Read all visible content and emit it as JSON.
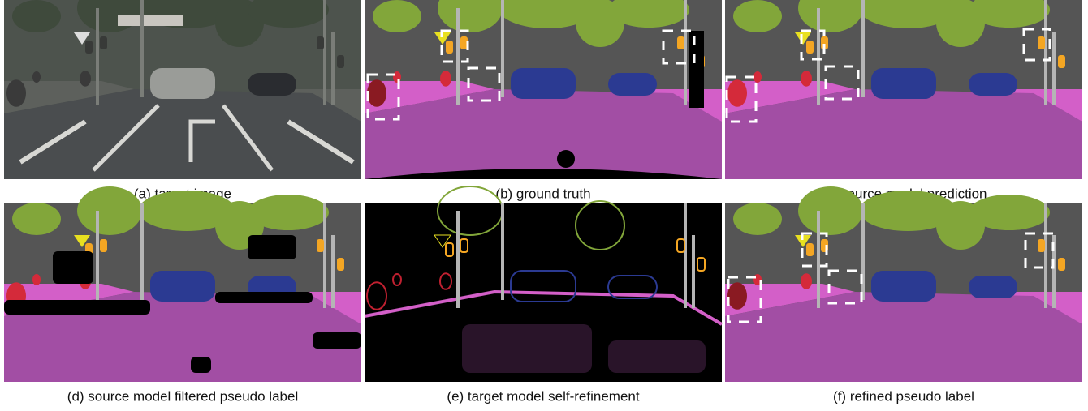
{
  "panels": [
    {
      "caption": "(a) target image"
    },
    {
      "caption": "(b) ground truth"
    },
    {
      "caption": "(c) source model prediction"
    },
    {
      "caption": "(d) source model filtered pseudo label"
    },
    {
      "caption": "(e) target model self-refinement"
    },
    {
      "caption": "(f) refined pseudo label"
    }
  ]
}
